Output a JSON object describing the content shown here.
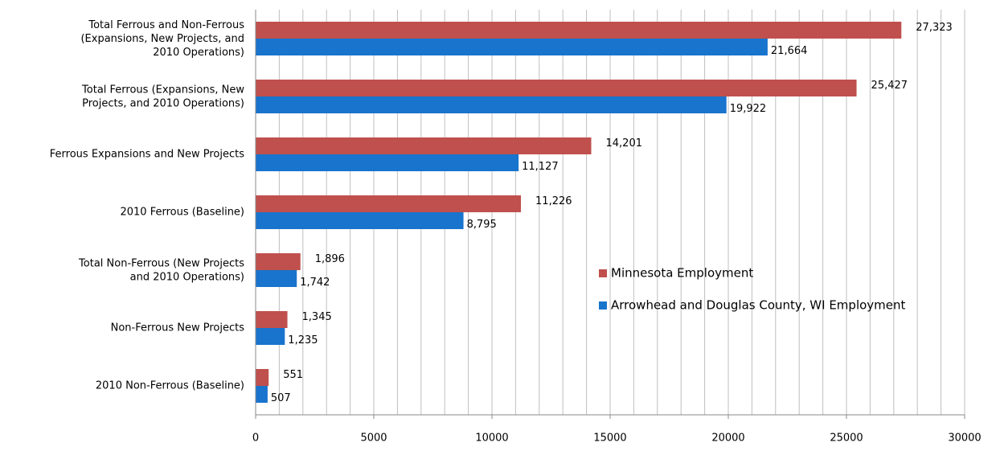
{
  "chart_data": {
    "type": "hbar",
    "categories": [
      "Total Ferrous and Non-Ferrous\n(Expansions, New Projects, and\n2010 Operations)",
      "Total Ferrous (Expansions, New\nProjects, and 2010 Operations)",
      "Ferrous Expansions and New Projects",
      "2010 Ferrous (Baseline)",
      "Total Non-Ferrous (New Projects\nand 2010 Operations)",
      "Non-Ferrous New Projects",
      "2010 Non-Ferrous (Baseline)"
    ],
    "series": [
      {
        "name": "Minnesota Employment",
        "color": "#c0504d",
        "values": [
          27323,
          25427,
          14201,
          11226,
          1896,
          1345,
          551
        ],
        "value_labels": [
          "27,323",
          "25,427",
          "14,201",
          "11,226",
          "1,896",
          "1,345",
          "551"
        ]
      },
      {
        "name": "Arrowhead and Douglas County, WI Employment",
        "color": "#1874cd",
        "values": [
          21664,
          19922,
          11127,
          8795,
          1742,
          1235,
          507
        ],
        "value_labels": [
          "21,664",
          "19,922",
          "11,127",
          "8,795",
          "1,742",
          "1,235",
          "507"
        ]
      }
    ],
    "xlim": [
      0,
      30000
    ],
    "xticks": [
      0,
      5000,
      10000,
      15000,
      20000,
      25000,
      30000
    ],
    "grid": true,
    "minor_grid_step": 1000,
    "legend": "right"
  }
}
